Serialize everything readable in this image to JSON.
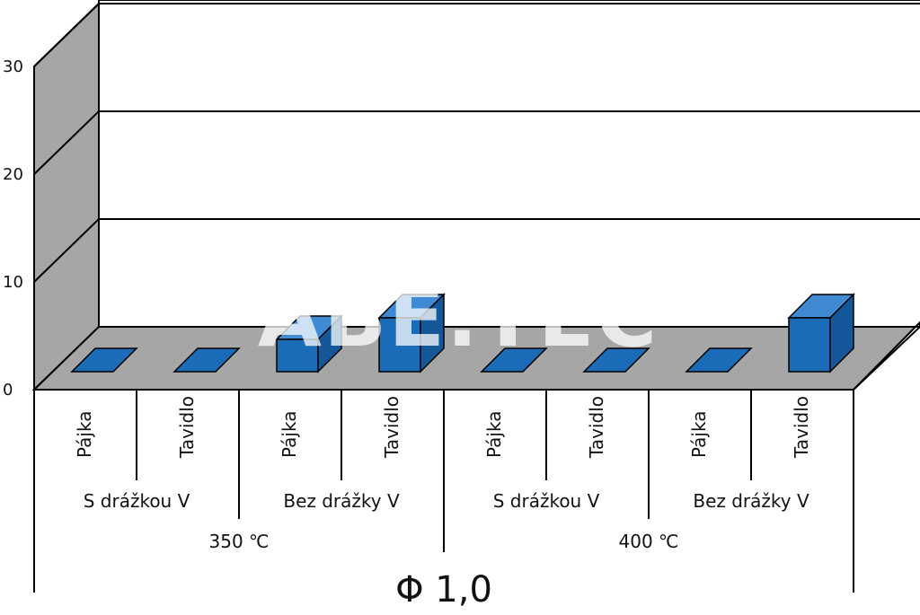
{
  "chart_data": {
    "type": "bar",
    "title": "Φ 1,0",
    "ylim": [
      0,
      30
    ],
    "yticks": [
      "0",
      "10",
      "20",
      "30"
    ],
    "groups": [
      {
        "label": "350 ℃",
        "subgroups": [
          {
            "label": "S drážkou V",
            "items": [
              {
                "label": "Pájka",
                "value": 0
              },
              {
                "label": "Tavidlo",
                "value": 0
              }
            ]
          },
          {
            "label": "Bez drážky V",
            "items": [
              {
                "label": "Pájka",
                "value": 3
              },
              {
                "label": "Tavidlo",
                "value": 5
              }
            ]
          }
        ]
      },
      {
        "label": "400 ℃",
        "subgroups": [
          {
            "label": "S drážkou V",
            "items": [
              {
                "label": "Pájka",
                "value": 0
              },
              {
                "label": "Tavidlo",
                "value": 0
              }
            ]
          },
          {
            "label": "Bez drážky V",
            "items": [
              {
                "label": "Pájka",
                "value": 0
              },
              {
                "label": "Tavidlo",
                "value": 5
              }
            ]
          }
        ]
      }
    ],
    "colors": {
      "bar_front": "#1a6bb8",
      "bar_side": "#14589a",
      "bar_top": "#3f8ad2",
      "floor": "#a6a6a6",
      "wall_side": "#a6a6a6",
      "back_wall": "#ffffff",
      "line": "#000000"
    },
    "watermark": "ABE.TEC"
  }
}
